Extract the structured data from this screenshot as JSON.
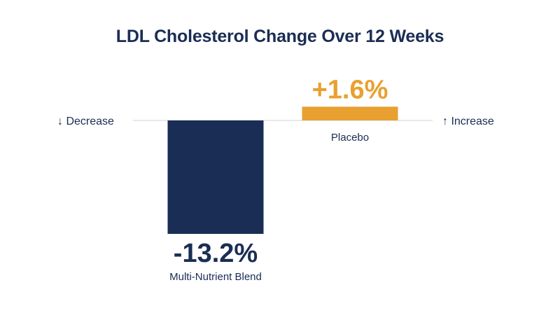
{
  "chart_data": {
    "type": "bar",
    "title": "LDL Cholesterol Change Over 12 Weeks",
    "categories": [
      "Multi-Nutrient Blend",
      "Placebo"
    ],
    "values": [
      -13.2,
      1.6
    ],
    "value_labels": [
      "-13.2%",
      "+1.6%"
    ],
    "unit": "%",
    "colors": [
      "#1a2d54",
      "#e8a030"
    ],
    "left_annotation": "↓ Decrease",
    "right_annotation": "↑ Increase",
    "baseline_color": "#d0d0d0",
    "grid": false,
    "legend": "none"
  }
}
